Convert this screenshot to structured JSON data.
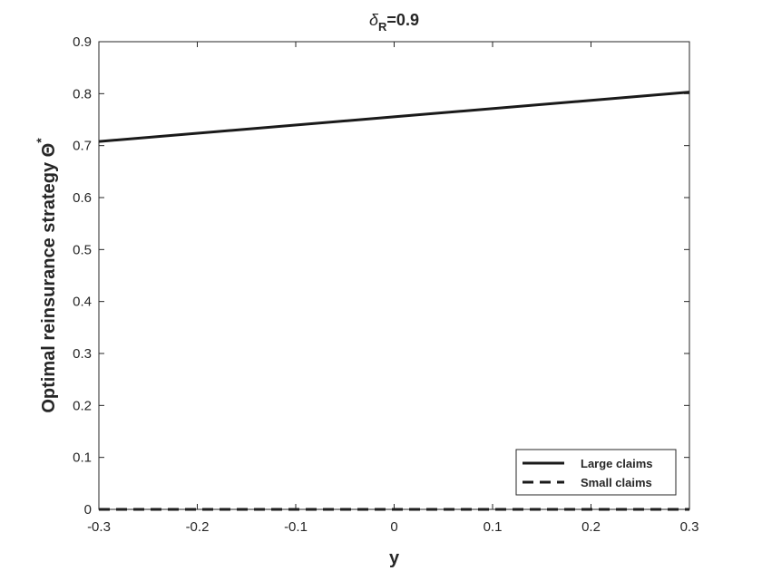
{
  "chart_data": {
    "type": "line",
    "title": "δ_R=0.9",
    "title_parts": {
      "symbol": "δ",
      "subscript": "R",
      "rest": "=0.9"
    },
    "xlabel": "y",
    "ylabel": "Optimal reinsurance strategy Θ",
    "ylabel_sup": "*",
    "xlim": [
      -0.3,
      0.3
    ],
    "ylim": [
      0,
      0.9
    ],
    "xticks": [
      -0.3,
      -0.2,
      -0.1,
      0,
      0.1,
      0.2,
      0.3
    ],
    "xtick_labels": [
      "-0.3",
      "-0.2",
      "-0.1",
      "0",
      "0.1",
      "0.2",
      "0.3"
    ],
    "yticks": [
      0,
      0.1,
      0.2,
      0.3,
      0.4,
      0.5,
      0.6,
      0.7,
      0.8,
      0.9
    ],
    "ytick_labels": [
      "0",
      "0.1",
      "0.2",
      "0.3",
      "0.4",
      "0.5",
      "0.6",
      "0.7",
      "0.8",
      "0.9"
    ],
    "grid": false,
    "legend_position": "bottom-right",
    "series": [
      {
        "name": "Large claims",
        "style": "solid",
        "color": "#1a1a1a",
        "x": [
          -0.3,
          0.3
        ],
        "y": [
          0.708,
          0.803
        ]
      },
      {
        "name": "Small claims",
        "style": "dashed",
        "color": "#1a1a1a",
        "x": [
          -0.3,
          0.3
        ],
        "y": [
          0.0,
          0.0
        ]
      }
    ]
  }
}
